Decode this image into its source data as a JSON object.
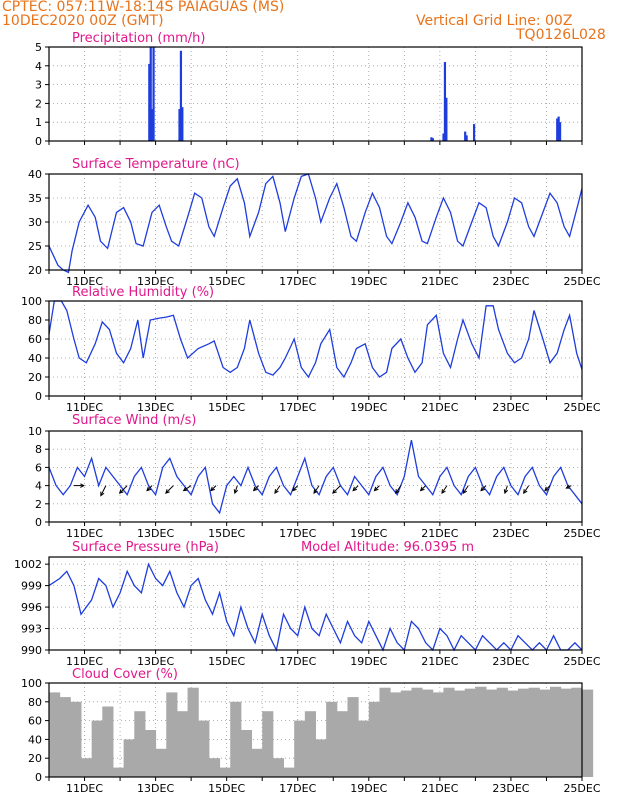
{
  "header": {
    "line1": "CPTEC:   057:11W-18:14S   PAIAGUAS (MS)",
    "line2": "10DEC2020 00Z (GMT)",
    "grid_note": "Vertical Grid Line: 00Z",
    "code": "TQ0126L028"
  },
  "colors": {
    "line": "#1f3ddc",
    "title": "#e0188c",
    "header": "#e8731a",
    "cloud": "#a9a9a9",
    "arrow": "#000000"
  },
  "chart_data": [
    {
      "id": "precip",
      "type": "bar",
      "title": "Precipitation (mm/h)",
      "ylim": [
        0,
        5
      ],
      "yticks": [
        0,
        1,
        2,
        3,
        4,
        5
      ],
      "xticks_shown": false,
      "x_units": "days since 10DEC 00Z",
      "series": [
        {
          "x": [
            2.82,
            2.86,
            2.9,
            2.94,
            3.67,
            3.71,
            3.75,
            10.76,
            10.8,
            11.1,
            11.14,
            11.18,
            11.71,
            11.75,
            11.96,
            14.3,
            14.34,
            14.38
          ],
          "values": [
            4.1,
            5.0,
            1.7,
            5.0,
            1.7,
            4.8,
            1.8,
            0.2,
            0.15,
            0.4,
            4.2,
            2.3,
            0.5,
            0.3,
            0.9,
            1.2,
            1.3,
            1.0
          ]
        }
      ]
    },
    {
      "id": "temp",
      "type": "line",
      "title": "Surface Temperature (nC)",
      "ylim": [
        20,
        40
      ],
      "yticks": [
        20,
        25,
        30,
        35,
        40
      ],
      "series": [
        {
          "x": [
            0,
            0.25,
            0.4,
            0.55,
            0.65,
            0.85,
            1.1,
            1.3,
            1.45,
            1.65,
            1.9,
            2.1,
            2.3,
            2.45,
            2.65,
            2.9,
            3.1,
            3.3,
            3.45,
            3.65,
            3.9,
            4.1,
            4.3,
            4.5,
            4.65,
            4.9,
            5.1,
            5.3,
            5.5,
            5.65,
            5.9,
            6.1,
            6.3,
            6.5,
            6.65,
            6.9,
            7.1,
            7.3,
            7.5,
            7.65,
            7.9,
            8.1,
            8.3,
            8.5,
            8.65,
            8.9,
            9.1,
            9.3,
            9.5,
            9.65,
            9.9,
            10.1,
            10.3,
            10.5,
            10.65,
            10.9,
            11.1,
            11.3,
            11.5,
            11.65,
            11.9,
            12.1,
            12.3,
            12.5,
            12.65,
            12.9,
            13.1,
            13.3,
            13.5,
            13.65,
            13.9,
            14.1,
            14.3,
            14.5,
            14.65,
            14.9,
            15.0
          ],
          "values": [
            25,
            21,
            20,
            19.5,
            24,
            30,
            33.5,
            31,
            26,
            24.5,
            32,
            33,
            30,
            25.5,
            25,
            32,
            33.5,
            29,
            26,
            25,
            31,
            36,
            35,
            29,
            27,
            33,
            37.5,
            39,
            34,
            27,
            32,
            38,
            39.5,
            34,
            28,
            35,
            39.5,
            40,
            35,
            30,
            35,
            38,
            33,
            27,
            26,
            32,
            36,
            33,
            27,
            25.5,
            30,
            34,
            31,
            26,
            25.5,
            31,
            35,
            32,
            26,
            25,
            30,
            34,
            33,
            27,
            25,
            30,
            35,
            34,
            29,
            27,
            32,
            36,
            34,
            29,
            27,
            34,
            37
          ]
        }
      ]
    },
    {
      "id": "rh",
      "type": "line",
      "title": "Relative Humidity (%)",
      "ylim": [
        0,
        100
      ],
      "yticks": [
        0,
        20,
        40,
        60,
        80,
        100
      ],
      "series": [
        {
          "x": [
            0,
            0.15,
            0.35,
            0.5,
            0.7,
            0.85,
            1.05,
            1.3,
            1.5,
            1.7,
            1.9,
            2.1,
            2.3,
            2.5,
            2.65,
            2.85,
            3.1,
            3.3,
            3.5,
            3.7,
            3.9,
            4.2,
            4.5,
            4.65,
            4.9,
            5.1,
            5.3,
            5.5,
            5.65,
            5.9,
            6.1,
            6.3,
            6.5,
            6.65,
            6.9,
            7.1,
            7.3,
            7.5,
            7.65,
            7.9,
            8.1,
            8.3,
            8.5,
            8.65,
            8.9,
            9.1,
            9.3,
            9.5,
            9.65,
            9.9,
            10.1,
            10.3,
            10.5,
            10.65,
            10.9,
            11.1,
            11.3,
            11.5,
            11.65,
            11.9,
            12.1,
            12.3,
            12.5,
            12.65,
            12.9,
            13.1,
            13.3,
            13.5,
            13.65,
            13.9,
            14.1,
            14.3,
            14.5,
            14.65,
            14.85,
            15.0
          ],
          "values": [
            65,
            100,
            100,
            90,
            60,
            40,
            35,
            55,
            78,
            70,
            45,
            35,
            50,
            80,
            40,
            80,
            82,
            83,
            85,
            60,
            40,
            50,
            55,
            58,
            30,
            25,
            30,
            50,
            80,
            45,
            25,
            22,
            30,
            40,
            60,
            30,
            20,
            35,
            55,
            70,
            30,
            20,
            35,
            50,
            55,
            30,
            20,
            25,
            50,
            60,
            40,
            25,
            35,
            75,
            85,
            45,
            30,
            60,
            80,
            55,
            40,
            95,
            95,
            70,
            45,
            35,
            40,
            60,
            90,
            60,
            35,
            45,
            70,
            85,
            45,
            28
          ]
        }
      ]
    },
    {
      "id": "wind",
      "type": "line",
      "title": "Surface Wind (m/s)",
      "ylim": [
        0,
        10
      ],
      "yticks": [
        0,
        2,
        4,
        6,
        8,
        10
      ],
      "series": [
        {
          "x": [
            0,
            0.2,
            0.4,
            0.6,
            0.8,
            1.0,
            1.2,
            1.4,
            1.6,
            1.8,
            2.0,
            2.2,
            2.4,
            2.6,
            2.8,
            3.0,
            3.2,
            3.4,
            3.6,
            3.8,
            4.0,
            4.2,
            4.4,
            4.6,
            4.8,
            5.0,
            5.2,
            5.4,
            5.6,
            5.8,
            6.0,
            6.2,
            6.4,
            6.6,
            6.8,
            7.0,
            7.2,
            7.4,
            7.6,
            7.8,
            8.0,
            8.2,
            8.4,
            8.6,
            8.8,
            9.0,
            9.2,
            9.4,
            9.6,
            9.8,
            10.0,
            10.2,
            10.4,
            10.6,
            10.8,
            11.0,
            11.2,
            11.4,
            11.6,
            11.8,
            12.0,
            12.2,
            12.4,
            12.6,
            12.8,
            13.0,
            13.2,
            13.4,
            13.6,
            13.8,
            14.0,
            14.2,
            14.4,
            14.6,
            14.8,
            15.0
          ],
          "values": [
            6,
            4,
            3,
            4,
            6,
            5,
            7,
            4,
            6,
            5,
            4,
            3,
            5,
            6,
            4,
            3,
            6,
            7,
            5,
            4,
            3,
            5,
            6,
            2,
            1,
            4,
            5,
            4,
            6,
            4,
            3,
            5,
            6,
            4,
            3,
            5,
            7,
            4,
            3,
            5,
            6,
            4,
            3,
            5,
            4,
            3,
            5,
            6,
            4,
            3,
            5,
            9,
            5,
            4,
            3,
            5,
            6,
            4,
            3,
            5,
            6,
            4,
            3,
            5,
            6,
            4,
            3,
            5,
            6,
            4,
            3,
            5,
            6,
            4,
            3,
            2
          ]
        }
      ],
      "wind_vectors": {
        "x": [
          0.7,
          1.6,
          2.2,
          2.9,
          3.5,
          4.0,
          4.7,
          5.3,
          5.9,
          6.5,
          7.0,
          7.6,
          8.2,
          8.7,
          9.3,
          9.9,
          10.6,
          11.2,
          11.8,
          12.3,
          12.9,
          13.5,
          14.1,
          14.7
        ],
        "u": [
          2,
          -1,
          -1.5,
          -1,
          -1.5,
          -1.5,
          -1,
          -0.5,
          -1,
          -1,
          -1,
          -1,
          -1.5,
          -1,
          -1,
          -1,
          -1,
          -1,
          -1,
          -1,
          -0.5,
          -1,
          -1,
          -1
        ],
        "v": [
          0,
          -2,
          -1.5,
          -1,
          -1.5,
          -1,
          -1,
          -1.5,
          -1,
          -1.5,
          -1,
          -1.5,
          -1.5,
          -1,
          -1,
          -1.5,
          -1,
          -1.5,
          -1.5,
          -1,
          -1.5,
          -1.5,
          -1,
          -0.5
        ]
      }
    },
    {
      "id": "pressure",
      "type": "line",
      "title": "Surface Pressure (hPa)",
      "note": "Model Altitude: 96.0395 m",
      "ylim": [
        990,
        1003
      ],
      "yticks": [
        990,
        993,
        996,
        999,
        1002
      ],
      "series": [
        {
          "x": [
            0,
            0.3,
            0.5,
            0.7,
            0.9,
            1.2,
            1.4,
            1.6,
            1.8,
            2.0,
            2.2,
            2.4,
            2.6,
            2.8,
            3.0,
            3.2,
            3.4,
            3.6,
            3.8,
            4.0,
            4.2,
            4.4,
            4.6,
            4.8,
            5.0,
            5.2,
            5.4,
            5.6,
            5.8,
            6.0,
            6.2,
            6.4,
            6.6,
            6.8,
            7.0,
            7.2,
            7.4,
            7.6,
            7.8,
            8.0,
            8.2,
            8.4,
            8.6,
            8.8,
            9.0,
            9.2,
            9.4,
            9.6,
            9.8,
            10.0,
            10.2,
            10.4,
            10.6,
            10.8,
            11.0,
            11.2,
            11.4,
            11.6,
            11.8,
            12.0,
            12.2,
            12.4,
            12.6,
            12.8,
            13.0,
            13.2,
            13.4,
            13.6,
            13.8,
            14.0,
            14.2,
            14.4,
            14.6,
            14.8,
            15.0
          ],
          "values": [
            999,
            1000,
            1001,
            999,
            995,
            997,
            1000,
            999,
            996,
            998,
            1001,
            999,
            998,
            1002,
            1000,
            999,
            1001,
            998,
            996,
            999,
            1000,
            997,
            995,
            998,
            994,
            992,
            996,
            993,
            991,
            995,
            992,
            990,
            995,
            993,
            992,
            996,
            993,
            992,
            995,
            993,
            991,
            994,
            992,
            991,
            994,
            992,
            990,
            993,
            991,
            990,
            994,
            993,
            991,
            990,
            993,
            992,
            990,
            992,
            991,
            990,
            992,
            991,
            990,
            991,
            990,
            992,
            991,
            990,
            991,
            990,
            992,
            990,
            990,
            991,
            990
          ]
        }
      ]
    },
    {
      "id": "cloud",
      "type": "area",
      "title": "Cloud Cover (%)",
      "ylim": [
        0,
        100
      ],
      "yticks": [
        0,
        20,
        40,
        60,
        80,
        100
      ],
      "series": [
        {
          "x": [
            0,
            0.3,
            0.6,
            0.9,
            1.2,
            1.5,
            1.8,
            2.1,
            2.4,
            2.7,
            3.0,
            3.3,
            3.6,
            3.9,
            4.2,
            4.5,
            4.8,
            5.1,
            5.4,
            5.7,
            6.0,
            6.3,
            6.6,
            6.9,
            7.2,
            7.5,
            7.8,
            8.1,
            8.4,
            8.7,
            9.0,
            9.3,
            9.6,
            9.9,
            10.2,
            10.5,
            10.8,
            11.1,
            11.4,
            11.7,
            12.0,
            12.3,
            12.6,
            12.9,
            13.2,
            13.5,
            13.8,
            14.1,
            14.4,
            14.7,
            15.0
          ],
          "values": [
            90,
            85,
            80,
            20,
            60,
            75,
            10,
            40,
            70,
            50,
            30,
            90,
            70,
            95,
            60,
            20,
            10,
            80,
            50,
            30,
            70,
            20,
            10,
            60,
            70,
            40,
            80,
            70,
            85,
            60,
            80,
            95,
            90,
            92,
            95,
            93,
            90,
            95,
            92,
            94,
            96,
            93,
            95,
            92,
            94,
            95,
            93,
            96,
            94,
            95,
            93
          ]
        }
      ]
    }
  ],
  "x_axis": {
    "labels": [
      "11DEC",
      "13DEC",
      "15DEC",
      "17DEC",
      "19DEC",
      "21DEC",
      "23DEC",
      "25DEC"
    ]
  }
}
